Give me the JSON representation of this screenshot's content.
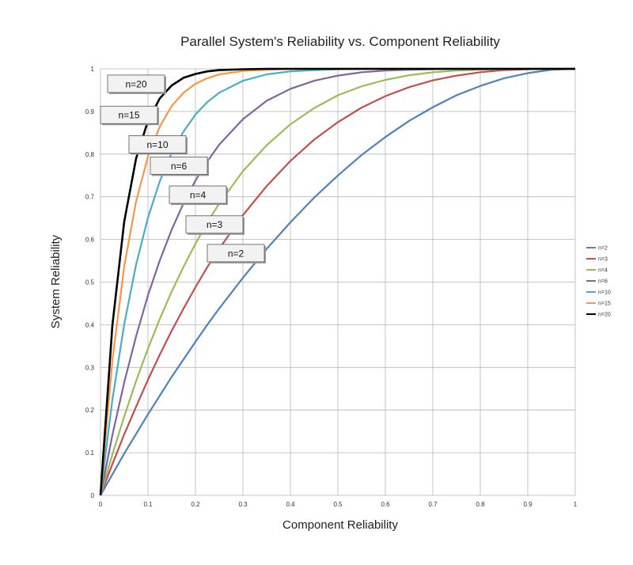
{
  "chart_data": {
    "type": "line",
    "title": "Parallel System's Reliability vs. Component Reliability",
    "xlabel": "Component Reliability",
    "ylabel": "System Reliability",
    "xlim": [
      0,
      1
    ],
    "ylim": [
      0,
      1
    ],
    "x_ticks": [
      "0",
      "0.1",
      "0.2",
      "0.3",
      "0.4",
      "0.5",
      "0.6",
      "0.7",
      "0.8",
      "0.9",
      "1"
    ],
    "y_ticks": [
      "0",
      "0.1",
      "0.2",
      "0.3",
      "0.4",
      "0.5",
      "0.6",
      "0.7",
      "0.8",
      "0.9",
      "1"
    ],
    "grid": true,
    "legend_position": "right",
    "x": [
      0,
      0.025,
      0.05,
      0.075,
      0.1,
      0.125,
      0.15,
      0.175,
      0.2,
      0.225,
      0.25,
      0.3,
      0.35,
      0.4,
      0.45,
      0.5,
      0.55,
      0.6,
      0.65,
      0.7,
      0.75,
      0.8,
      0.85,
      0.9,
      0.95,
      1
    ],
    "series": [
      {
        "name": "n=2",
        "color": "#4f81bd",
        "values": [
          0,
          0.049,
          0.098,
          0.144,
          0.19,
          0.234,
          0.278,
          0.319,
          0.36,
          0.4,
          0.438,
          0.51,
          0.578,
          0.64,
          0.698,
          0.75,
          0.798,
          0.84,
          0.878,
          0.91,
          0.938,
          0.96,
          0.978,
          0.99,
          0.998,
          1
        ]
      },
      {
        "name": "n=3",
        "color": "#c0504d",
        "values": [
          0,
          0.073,
          0.143,
          0.208,
          0.271,
          0.33,
          0.386,
          0.438,
          0.488,
          0.535,
          0.578,
          0.657,
          0.725,
          0.784,
          0.834,
          0.875,
          0.909,
          0.936,
          0.957,
          0.973,
          0.984,
          0.992,
          0.997,
          0.999,
          1,
          1
        ]
      },
      {
        "name": "n=4",
        "color": "#9bbb59",
        "values": [
          0,
          0.096,
          0.185,
          0.268,
          0.344,
          0.414,
          0.478,
          0.536,
          0.59,
          0.64,
          0.684,
          0.76,
          0.821,
          0.87,
          0.908,
          0.938,
          0.959,
          0.974,
          0.985,
          0.992,
          0.996,
          0.998,
          0.999,
          1,
          1,
          1
        ]
      },
      {
        "name": "n=6",
        "color": "#8064a2",
        "values": [
          0,
          0.141,
          0.265,
          0.373,
          0.469,
          0.551,
          0.623,
          0.685,
          0.738,
          0.783,
          0.822,
          0.882,
          0.925,
          0.953,
          0.972,
          0.984,
          0.992,
          0.996,
          0.998,
          0.999,
          1,
          1,
          1,
          1,
          1,
          1
        ]
      },
      {
        "name": "n=10",
        "color": "#4bacc6",
        "values": [
          0,
          0.224,
          0.401,
          0.541,
          0.651,
          0.737,
          0.803,
          0.853,
          0.893,
          0.922,
          0.944,
          0.972,
          0.987,
          0.994,
          0.997,
          0.999,
          1,
          1,
          1,
          1,
          1,
          1,
          1,
          1,
          1,
          1
        ]
      },
      {
        "name": "n=15",
        "color": "#f79646",
        "values": [
          0,
          0.316,
          0.537,
          0.689,
          0.794,
          0.865,
          0.913,
          0.944,
          0.965,
          0.978,
          0.987,
          0.995,
          0.998,
          1,
          1,
          1,
          1,
          1,
          1,
          1,
          1,
          1,
          1,
          1,
          1,
          1
        ]
      },
      {
        "name": "n=20",
        "color": "#000000",
        "values": [
          0,
          0.398,
          0.642,
          0.79,
          0.878,
          0.931,
          0.961,
          0.979,
          0.988,
          0.994,
          0.997,
          0.999,
          1,
          1,
          1,
          1,
          1,
          1,
          1,
          1,
          1,
          1,
          1,
          1,
          1,
          1
        ]
      }
    ],
    "annotations": [
      {
        "text": "n=20",
        "series": "n=20",
        "x": 0.075,
        "y": 0.965
      },
      {
        "text": "n=15",
        "series": "n=15",
        "x": 0.06,
        "y": 0.892
      },
      {
        "text": "n=10",
        "series": "n=10",
        "x": 0.12,
        "y": 0.823
      },
      {
        "text": "n=6",
        "series": "n=6",
        "x": 0.165,
        "y": 0.773
      },
      {
        "text": "n=4",
        "series": "n=4",
        "x": 0.205,
        "y": 0.705
      },
      {
        "text": "n=3",
        "series": "n=3",
        "x": 0.24,
        "y": 0.635
      },
      {
        "text": "n=2",
        "series": "n=2",
        "x": 0.285,
        "y": 0.568
      }
    ]
  }
}
